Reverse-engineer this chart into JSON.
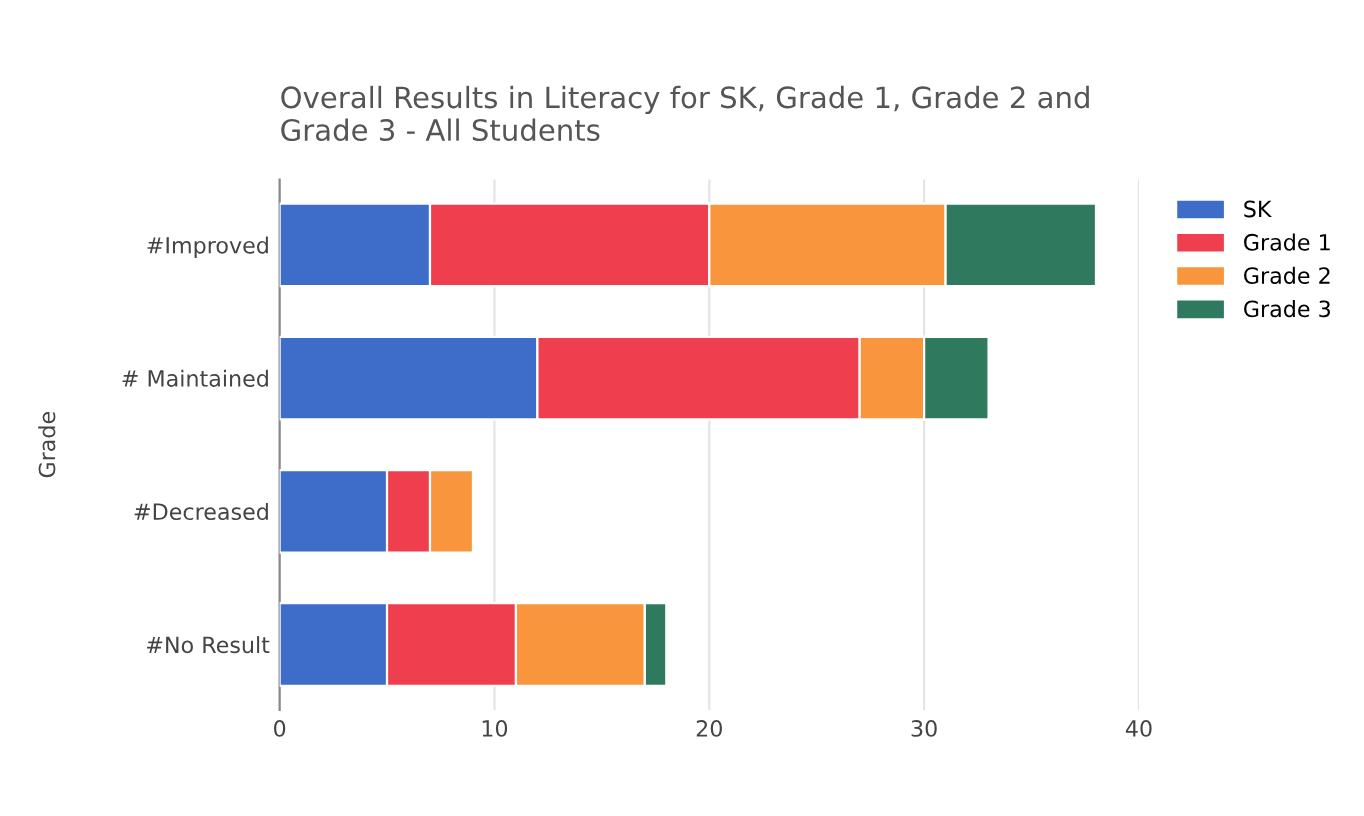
{
  "chart_data": {
    "type": "bar",
    "orientation": "horizontal",
    "stacked": true,
    "title": "Overall Results in Literacy for SK, Grade 1, Grade 2 and\nGrade 3 - All Students",
    "ylabel": "Grade",
    "categories": [
      "#Improved",
      "# Maintained",
      "#Decreased",
      "#No Result"
    ],
    "series": [
      {
        "name": "SK",
        "color": "#3d6cc9",
        "values": [
          7,
          12,
          5,
          5
        ]
      },
      {
        "name": "Grade 1",
        "color": "#ef3e4e",
        "values": [
          13,
          15,
          2,
          6
        ]
      },
      {
        "name": "Grade 2",
        "color": "#f9963d",
        "values": [
          11,
          3,
          2,
          6
        ]
      },
      {
        "name": "Grade 3",
        "color": "#2f7a5e",
        "values": [
          7,
          3,
          null,
          1
        ]
      }
    ],
    "xlim": [
      0,
      40
    ],
    "xticks": [
      0,
      10,
      20,
      30,
      40
    ],
    "grid": "x",
    "legend": "top right"
  }
}
